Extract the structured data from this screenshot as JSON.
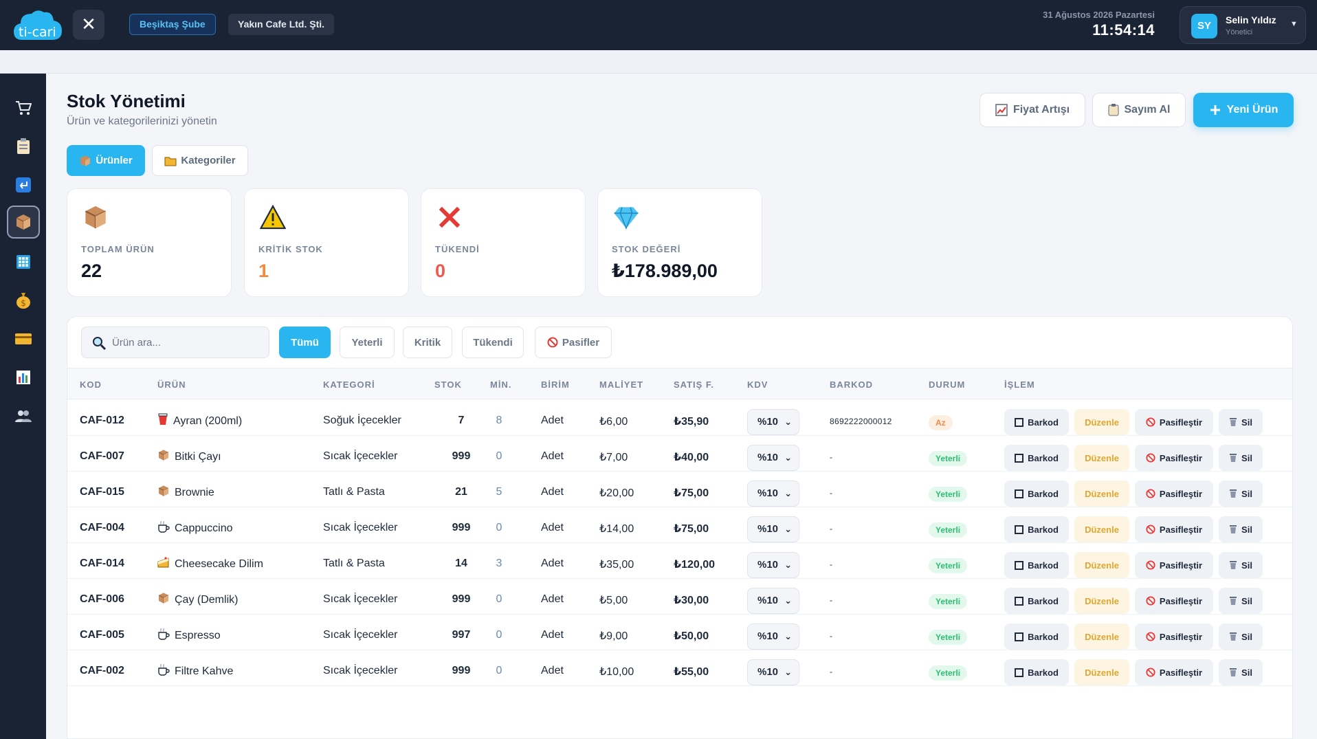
{
  "header": {
    "logo_text": "ti-cari",
    "branch": "Beşiktaş Şube",
    "company": "Yakın Cafe Ltd. Şti.",
    "date": "31 Ağustos 2026 Pazartesi",
    "time": "11:54:14",
    "user": {
      "initials": "SY",
      "name": "Selin Yıldız",
      "role": "Yönetici"
    }
  },
  "sidebar": {
    "items": [
      {
        "icon": "cart-icon",
        "active": false
      },
      {
        "icon": "clipboard-icon",
        "active": false
      },
      {
        "icon": "return-icon",
        "active": false
      },
      {
        "icon": "box-icon",
        "active": true
      },
      {
        "icon": "building-icon",
        "active": false
      },
      {
        "icon": "money-bag-icon",
        "active": false
      },
      {
        "icon": "credit-card-icon",
        "active": false
      },
      {
        "icon": "bar-chart-icon",
        "active": false
      },
      {
        "icon": "users-icon",
        "active": false
      }
    ]
  },
  "page": {
    "title": "Stok Yönetimi",
    "subtitle": "Ürün ve kategorilerinizi yönetin",
    "actions": {
      "price_increase": "Fiyat Artışı",
      "count": "Sayım Al",
      "new_product": "Yeni Ürün"
    },
    "tabs": {
      "products": "Ürünler",
      "categories": "Kategoriler"
    }
  },
  "stats": [
    {
      "label": "TOPLAM ÜRÜN",
      "value": "22",
      "color": "#101828",
      "icon": "box-icon"
    },
    {
      "label": "KRİTİK STOK",
      "value": "1",
      "color": "#f08a3e",
      "icon": "warning-icon"
    },
    {
      "label": "TÜKENDİ",
      "value": "0",
      "color": "#ef5a4f",
      "icon": "cross-icon"
    },
    {
      "label": "STOK DEĞERİ",
      "value": "₺178.989,00",
      "color": "#101828",
      "icon": "diamond-icon"
    }
  ],
  "filters": {
    "search_placeholder": "Ürün ara...",
    "all": "Tümü",
    "sufficient": "Yeterli",
    "critical": "Kritik",
    "out": "Tükendi",
    "passive": "Pasifler"
  },
  "table": {
    "headers": {
      "code": "KOD",
      "product": "ÜRÜN",
      "category": "KATEGORİ",
      "stock": "STOK",
      "min": "MİN.",
      "unit": "BİRİM",
      "cost": "MALİYET",
      "price": "SATIŞ F.",
      "kdv": "KDV",
      "barcode": "BARKOD",
      "status": "DURUM",
      "action": "İŞLEM"
    },
    "action_labels": {
      "barkod": "Barkod",
      "edit": "Düzenle",
      "passive": "Pasifleştir",
      "delete": "Sil"
    },
    "rows": [
      {
        "code": "CAF-012",
        "icon": "cup-icon",
        "name": "Ayran (200ml)",
        "category": "Soğuk İçecekler",
        "stock": "7",
        "min": "8",
        "unit": "Adet",
        "cost": "₺6,00",
        "price": "₺35,90",
        "kdv": "%10",
        "barcode": "8692222000012",
        "status": "Az",
        "status_type": "low"
      },
      {
        "code": "CAF-007",
        "icon": "box-icon",
        "name": "Bitki Çayı",
        "category": "Sıcak İçecekler",
        "stock": "999",
        "min": "0",
        "unit": "Adet",
        "cost": "₺7,00",
        "price": "₺40,00",
        "kdv": "%10",
        "barcode": "-",
        "status": "Yeterli",
        "status_type": "ok"
      },
      {
        "code": "CAF-015",
        "icon": "box-icon",
        "name": "Brownie",
        "category": "Tatlı & Pasta",
        "stock": "21",
        "min": "5",
        "unit": "Adet",
        "cost": "₺20,00",
        "price": "₺75,00",
        "kdv": "%10",
        "barcode": "-",
        "status": "Yeterli",
        "status_type": "ok"
      },
      {
        "code": "CAF-004",
        "icon": "coffee-icon",
        "name": "Cappuccino",
        "category": "Sıcak İçecekler",
        "stock": "999",
        "min": "0",
        "unit": "Adet",
        "cost": "₺14,00",
        "price": "₺75,00",
        "kdv": "%10",
        "barcode": "-",
        "status": "Yeterli",
        "status_type": "ok"
      },
      {
        "code": "CAF-014",
        "icon": "cake-icon",
        "name": "Cheesecake Dilim",
        "category": "Tatlı & Pasta",
        "stock": "14",
        "min": "3",
        "unit": "Adet",
        "cost": "₺35,00",
        "price": "₺120,00",
        "kdv": "%10",
        "barcode": "-",
        "status": "Yeterli",
        "status_type": "ok"
      },
      {
        "code": "CAF-006",
        "icon": "box-icon",
        "name": "Çay (Demlik)",
        "category": "Sıcak İçecekler",
        "stock": "999",
        "min": "0",
        "unit": "Adet",
        "cost": "₺5,00",
        "price": "₺30,00",
        "kdv": "%10",
        "barcode": "-",
        "status": "Yeterli",
        "status_type": "ok"
      },
      {
        "code": "CAF-005",
        "icon": "coffee-icon",
        "name": "Espresso",
        "category": "Sıcak İçecekler",
        "stock": "997",
        "min": "0",
        "unit": "Adet",
        "cost": "₺9,00",
        "price": "₺50,00",
        "kdv": "%10",
        "barcode": "-",
        "status": "Yeterli",
        "status_type": "ok"
      },
      {
        "code": "CAF-002",
        "icon": "coffee-icon",
        "name": "Filtre Kahve",
        "category": "Sıcak İçecekler",
        "stock": "999",
        "min": "0",
        "unit": "Adet",
        "cost": "₺10,00",
        "price": "₺55,00",
        "kdv": "%10",
        "barcode": "-",
        "status": "Yeterli",
        "status_type": "ok"
      }
    ]
  }
}
